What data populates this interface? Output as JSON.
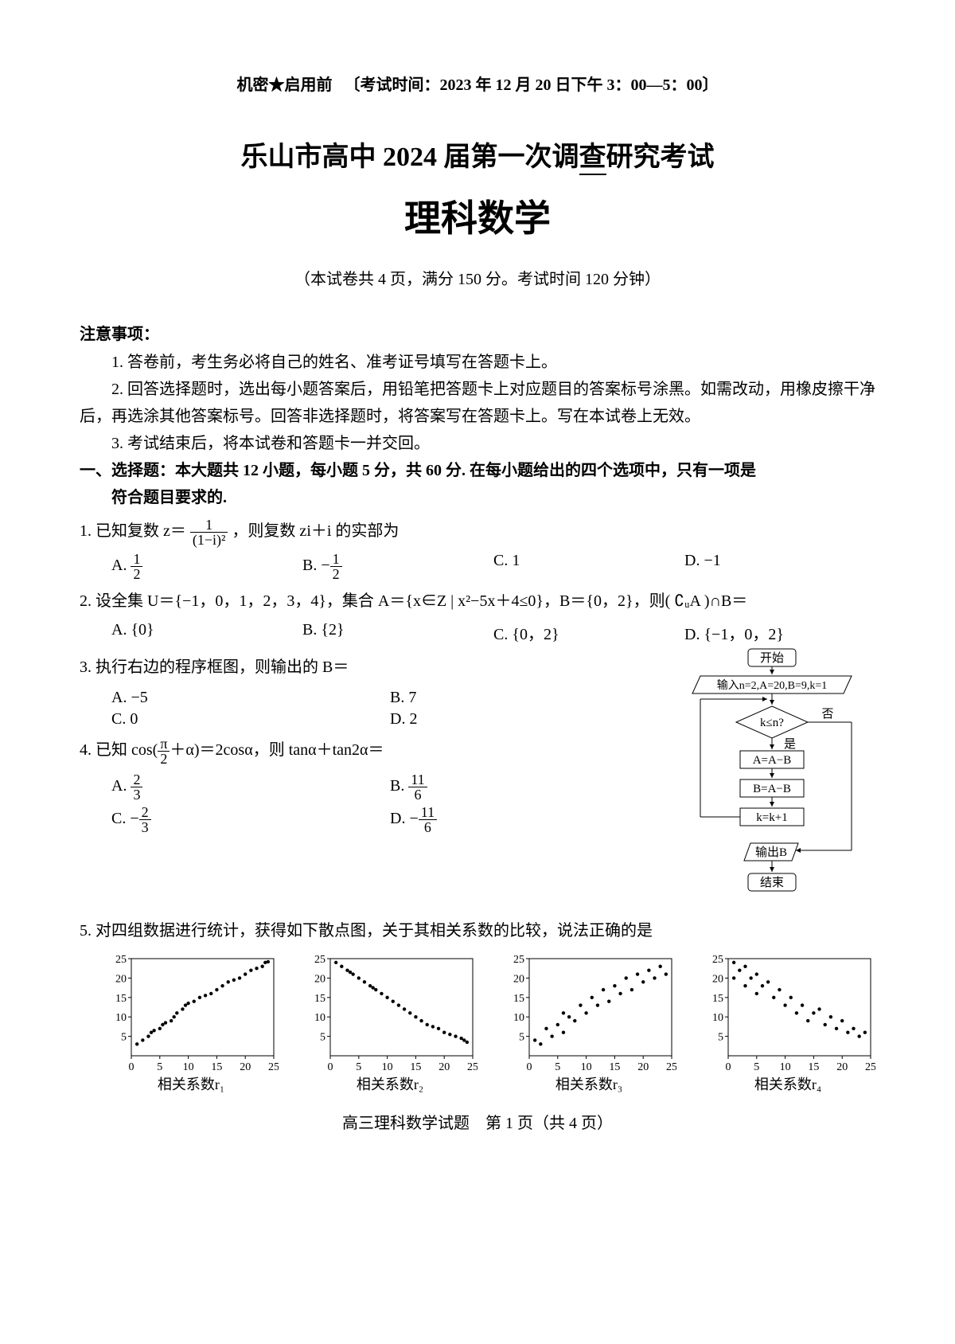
{
  "header": {
    "confidential": "机密★启用前",
    "exam_time": "〔考试时间：2023 年 12 月 20 日下午 3：00—5：00〕"
  },
  "titles": {
    "main_prefix": "乐山市高中 2024 届第一次调",
    "main_underlined": "查",
    "main_suffix": "研究考试",
    "subject": "理科数学",
    "subtitle": "（本试卷共 4 页，满分 150 分。考试时间 120 分钟）"
  },
  "notice": {
    "heading": "注意事项：",
    "items": [
      "1. 答卷前，考生务必将自己的姓名、准考证号填写在答题卡上。",
      "2. 回答选择题时，选出每小题答案后，用铅笔把答题卡上对应题目的答案标号涂黑。如需改动，用橡皮擦干净后，再选涂其他答案标号。回答非选择题时，将答案写在答题卡上。写在本试卷上无效。",
      "3. 考试结束后，将本试卷和答题卡一并交回。"
    ]
  },
  "section1": {
    "title_line1": "一、选择题：本大题共 12 小题，每小题 5 分，共 60 分. 在每小题给出的四个选项中，只有一项是",
    "title_line2": "符合题目要求的."
  },
  "q1": {
    "stem_pre": "1. 已知复数 z＝",
    "frac_num": "1",
    "frac_den": "(1−i)²",
    "stem_post": "，则复数 zi＋i 的实部为",
    "A_pre": "A. ",
    "A_num": "1",
    "A_den": "2",
    "B_pre": "B. −",
    "B_num": "1",
    "B_den": "2",
    "C": "C. 1",
    "D": "D. −1"
  },
  "q2": {
    "stem": "2. 设全集 U＝{−1，0，1，2，3，4}，集合 A＝{x∈Z | x²−5x＋4≤0}，B＝{0，2}，则( ∁ᵤA )∩B＝",
    "A": "A. {0}",
    "B": "B. {2}",
    "C": "C. {0，2}",
    "D": "D. {−1，0，2}"
  },
  "q3": {
    "stem": "3. 执行右边的程序框图，则输出的 B＝",
    "A": "A. −5",
    "B": "B. 7",
    "C": "C. 0",
    "D": "D. 2"
  },
  "q4": {
    "stem_pre": "4. 已知 cos(",
    "frac1_num": "π",
    "frac1_den": "2",
    "stem_mid": "＋α)＝2cosα，则 tanα＋tan2α＝",
    "A_pre": "A. ",
    "A_num": "2",
    "A_den": "3",
    "B_pre": "B. ",
    "B_num": "11",
    "B_den": "6",
    "C_pre": "C. −",
    "C_num": "2",
    "C_den": "3",
    "D_pre": "D. −",
    "D_num": "11",
    "D_den": "6"
  },
  "q5": {
    "stem": "5. 对四组数据进行统计，获得如下散点图，关于其相关系数的比较，说法正确的是"
  },
  "flowchart": {
    "start": "开始",
    "input": "输入n=2,A=20,B=9,k=1",
    "cond": "k≤n?",
    "cond_no": "否",
    "cond_yes": "是",
    "step1": "A=A−B",
    "step2": "B=A−B",
    "step3": "k=k+1",
    "output": "输出B",
    "end": "结束"
  },
  "scatter": {
    "axis_ticks": [
      "0",
      "5",
      "10",
      "15",
      "20",
      "25"
    ],
    "y_ticks": [
      "5",
      "10",
      "15",
      "20",
      "25"
    ],
    "labels": [
      "相关系数r₁",
      "相关系数r₂",
      "相关系数r₃",
      "相关系数r₄"
    ],
    "plots": [
      {
        "type": "scatter",
        "points": [
          [
            1,
            3
          ],
          [
            2,
            4
          ],
          [
            3,
            5
          ],
          [
            3.5,
            6
          ],
          [
            4,
            6.5
          ],
          [
            5,
            7
          ],
          [
            5.5,
            8
          ],
          [
            6,
            8.5
          ],
          [
            7,
            9
          ],
          [
            7.5,
            10
          ],
          [
            8,
            11
          ],
          [
            9,
            12
          ],
          [
            9.5,
            13
          ],
          [
            10,
            13.5
          ],
          [
            11,
            14
          ],
          [
            12,
            15
          ],
          [
            13,
            15.5
          ],
          [
            14,
            16
          ],
          [
            15,
            17
          ],
          [
            16,
            18
          ],
          [
            17,
            19
          ],
          [
            18,
            19.5
          ],
          [
            19,
            20
          ],
          [
            20,
            21
          ],
          [
            21,
            22
          ],
          [
            22,
            22.5
          ],
          [
            23,
            23
          ],
          [
            23.5,
            24
          ],
          [
            24,
            24.2
          ]
        ],
        "xlim": [
          0,
          25
        ],
        "ylim": [
          0,
          25
        ]
      },
      {
        "type": "scatter",
        "points": [
          [
            1,
            24
          ],
          [
            2,
            23
          ],
          [
            3,
            22
          ],
          [
            3.5,
            21.5
          ],
          [
            4,
            21
          ],
          [
            5,
            20
          ],
          [
            6,
            19
          ],
          [
            7,
            18
          ],
          [
            7.5,
            17.5
          ],
          [
            8,
            17
          ],
          [
            9,
            16
          ],
          [
            10,
            15
          ],
          [
            11,
            14
          ],
          [
            12,
            13
          ],
          [
            13,
            12
          ],
          [
            14,
            11
          ],
          [
            15,
            10
          ],
          [
            16,
            9
          ],
          [
            17,
            8
          ],
          [
            18,
            7.5
          ],
          [
            19,
            7
          ],
          [
            20,
            6
          ],
          [
            21,
            5.5
          ],
          [
            22,
            5
          ],
          [
            23,
            4.5
          ],
          [
            23.5,
            4
          ],
          [
            24,
            3.5
          ]
        ],
        "xlim": [
          0,
          25
        ],
        "ylim": [
          0,
          25
        ]
      },
      {
        "type": "scatter",
        "points": [
          [
            1,
            4
          ],
          [
            2,
            3
          ],
          [
            3,
            7
          ],
          [
            4,
            5
          ],
          [
            5,
            8
          ],
          [
            6,
            6
          ],
          [
            6,
            11
          ],
          [
            7,
            10
          ],
          [
            8,
            9
          ],
          [
            9,
            13
          ],
          [
            10,
            11
          ],
          [
            11,
            15
          ],
          [
            12,
            13
          ],
          [
            13,
            17
          ],
          [
            14,
            14
          ],
          [
            15,
            18
          ],
          [
            16,
            16
          ],
          [
            17,
            20
          ],
          [
            18,
            17
          ],
          [
            19,
            21
          ],
          [
            20,
            19
          ],
          [
            21,
            22
          ],
          [
            22,
            20
          ],
          [
            23,
            23
          ],
          [
            24,
            21
          ]
        ],
        "xlim": [
          0,
          25
        ],
        "ylim": [
          0,
          25
        ]
      },
      {
        "type": "scatter",
        "points": [
          [
            1,
            24
          ],
          [
            1,
            20
          ],
          [
            2,
            22
          ],
          [
            3,
            23
          ],
          [
            3,
            18
          ],
          [
            4,
            20
          ],
          [
            5,
            21
          ],
          [
            5,
            16
          ],
          [
            6,
            18
          ],
          [
            7,
            19
          ],
          [
            8,
            15
          ],
          [
            9,
            17
          ],
          [
            10,
            13
          ],
          [
            11,
            15
          ],
          [
            12,
            11
          ],
          [
            13,
            13
          ],
          [
            14,
            9
          ],
          [
            15,
            11
          ],
          [
            16,
            12
          ],
          [
            17,
            8
          ],
          [
            18,
            10
          ],
          [
            19,
            7
          ],
          [
            20,
            9
          ],
          [
            21,
            6
          ],
          [
            22,
            7
          ],
          [
            23,
            5
          ],
          [
            24,
            6
          ]
        ],
        "xlim": [
          0,
          25
        ],
        "ylim": [
          0,
          25
        ]
      }
    ]
  },
  "footer": "高三理科数学试题　第 1 页（共 4 页）"
}
